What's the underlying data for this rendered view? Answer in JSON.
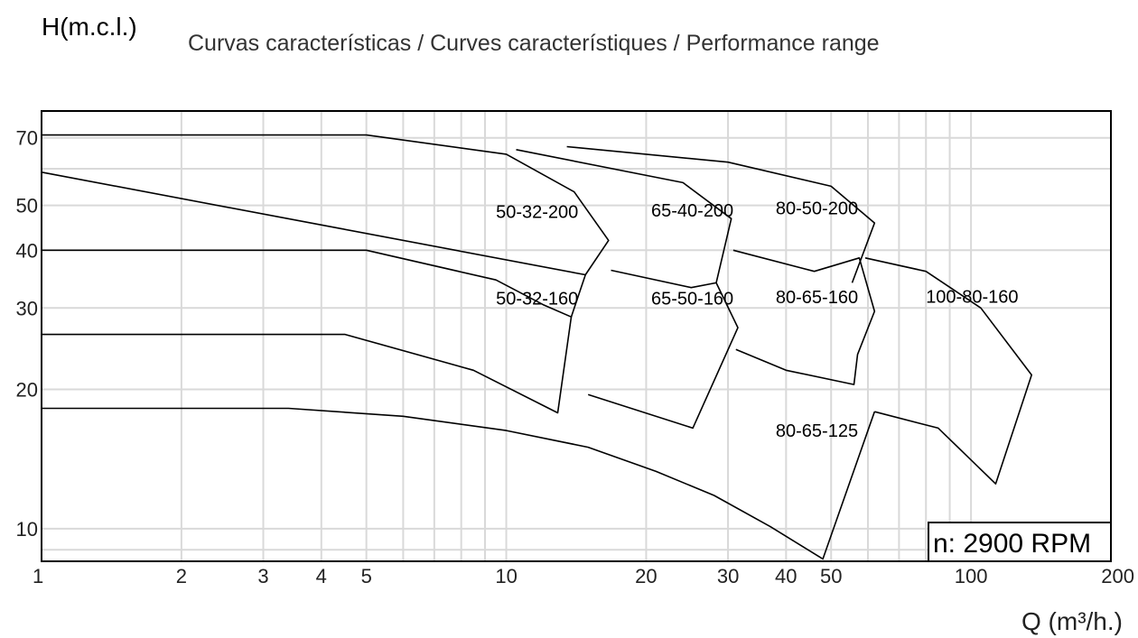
{
  "chart_data": {
    "type": "line",
    "title": "Curvas características / Curves característiques / Performance range",
    "ylabel": "H(m.c.l.)",
    "xlabel": "Q (m³/h.)",
    "x_scale": "log",
    "y_scale": "log",
    "xlim": [
      1,
      200
    ],
    "ylim": [
      8.5,
      80
    ],
    "x_ticks": [
      1,
      2,
      3,
      4,
      5,
      10,
      20,
      30,
      40,
      50,
      100,
      200
    ],
    "x_tick_labels": [
      "1",
      "2",
      "3",
      "4",
      "5",
      "10",
      "20",
      "30",
      "40",
      "50",
      "100",
      "200"
    ],
    "y_ticks": [
      10,
      20,
      30,
      40,
      50,
      70
    ],
    "y_tick_labels": [
      "10",
      "20",
      "30",
      "40",
      "50",
      "70"
    ],
    "grid": true,
    "annotation": "n: 2900 RPM",
    "series": [
      {
        "name": "50-32-200",
        "label_at": [
          9.5,
          47
        ],
        "outline": [
          [
            1,
            71
          ],
          [
            5,
            71
          ],
          [
            10,
            64.5
          ],
          [
            14,
            53.5
          ],
          [
            16.6,
            42
          ],
          [
            14.8,
            35.4
          ],
          [
            13.8,
            28.7
          ],
          [
            14.8,
            35.4
          ],
          [
            1,
            59
          ]
        ]
      },
      {
        "name": "50-32-160",
        "label_at": [
          9.5,
          30.5
        ],
        "outline": [
          [
            1,
            40
          ],
          [
            5,
            40
          ],
          [
            9.5,
            34.5
          ],
          [
            12,
            30.5
          ],
          [
            13.8,
            28.7
          ],
          [
            12.9,
            17.8
          ],
          [
            8.5,
            22
          ],
          [
            4.5,
            26.3
          ],
          [
            1,
            26.3
          ]
        ]
      },
      {
        "name": "65-40-200",
        "label_at": [
          20.5,
          47.3
        ],
        "outline": [
          [
            10.5,
            66
          ],
          [
            24,
            56
          ],
          [
            30.5,
            46.8
          ],
          [
            28.3,
            34
          ]
        ]
      },
      {
        "name": "65-50-160",
        "label_at": [
          20.5,
          30.5
        ],
        "outline": [
          [
            16.8,
            36.2
          ],
          [
            25,
            33.2
          ],
          [
            28.3,
            34
          ],
          [
            31.5,
            27.2
          ],
          [
            25.2,
            16.5
          ],
          [
            15,
            19.5
          ]
        ]
      },
      {
        "name": "80-50-200",
        "label_at": [
          38,
          47.8
        ],
        "outline": [
          [
            13.5,
            67
          ],
          [
            30,
            62
          ],
          [
            50,
            55
          ],
          [
            62,
            45.8
          ],
          [
            55.5,
            34
          ]
        ]
      },
      {
        "name": "80-65-160",
        "label_at": [
          38,
          30.7
        ],
        "outline": [
          [
            30.8,
            40
          ],
          [
            46,
            36
          ],
          [
            57.5,
            38.5
          ],
          [
            62,
            29.5
          ],
          [
            57,
            23.8
          ],
          [
            56,
            20.5
          ],
          [
            40,
            22
          ],
          [
            31.2,
            24.4
          ]
        ]
      },
      {
        "name": "80-65-125",
        "label_at": [
          38,
          15.8
        ],
        "outline": [
          [
            1,
            18.2
          ],
          [
            3.4,
            18.2
          ],
          [
            6,
            17.5
          ],
          [
            10,
            16.3
          ],
          [
            15,
            15
          ],
          [
            21,
            13.3
          ],
          [
            28,
            11.8
          ],
          [
            37,
            10.1
          ],
          [
            48,
            8.6
          ],
          [
            62,
            17.9
          ]
        ]
      },
      {
        "name": "100-80-160",
        "label_at": [
          80,
          30.8
        ],
        "outline": [
          [
            59.2,
            38.5
          ],
          [
            80,
            36
          ],
          [
            105,
            30
          ],
          [
            135,
            21.5
          ],
          [
            113,
            12.5
          ],
          [
            85,
            16.5
          ],
          [
            62,
            17.9
          ]
        ]
      }
    ]
  }
}
